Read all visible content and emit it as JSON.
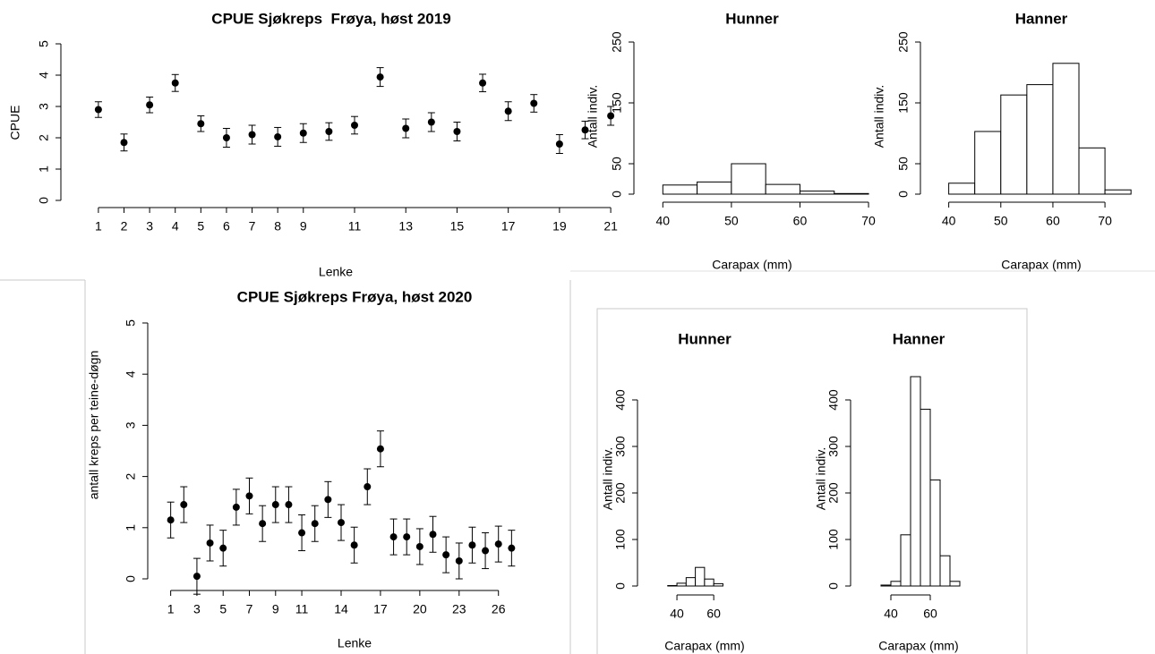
{
  "chart_data": [
    {
      "type": "errorbar",
      "title": "CPUE Sjøkreps  Frøya, høst 2019",
      "xlabel": "Lenke",
      "ylabel": "CPUE",
      "x": [
        1,
        2,
        3,
        4,
        5,
        6,
        7,
        8,
        9,
        10,
        11,
        12,
        13,
        14,
        15,
        16,
        17,
        18,
        19,
        20,
        21
      ],
      "values": [
        2.9,
        1.85,
        3.05,
        3.75,
        2.45,
        2.0,
        2.1,
        2.03,
        2.15,
        2.2,
        2.4,
        3.94,
        2.3,
        2.5,
        2.2,
        3.75,
        2.85,
        3.1,
        1.8,
        2.25,
        2.7
      ],
      "errors": [
        0.25,
        0.27,
        0.25,
        0.27,
        0.25,
        0.3,
        0.3,
        0.3,
        0.3,
        0.28,
        0.28,
        0.3,
        0.3,
        0.3,
        0.3,
        0.28,
        0.3,
        0.28,
        0.3,
        0.28,
        0.3
      ],
      "xlim": [
        0.2,
        21.8
      ],
      "ylim": [
        0,
        5
      ],
      "xticks": [
        1,
        2,
        3,
        4,
        5,
        6,
        7,
        8,
        9,
        11,
        13,
        15,
        17,
        19,
        21
      ],
      "yticks": [
        0,
        1,
        2,
        3,
        4,
        5
      ],
      "color": "#000000"
    },
    {
      "type": "histogram",
      "title": "Hunner",
      "xlabel": "Carapax (mm)",
      "ylabel": "Antall indiv.",
      "bins": [
        40,
        45,
        50,
        55,
        60,
        65,
        70,
        75
      ],
      "values": [
        15,
        20,
        50,
        16,
        5,
        1,
        0
      ],
      "xlim": [
        38,
        76
      ],
      "ylim": [
        0,
        250
      ],
      "xticks": [
        40,
        50,
        60,
        70
      ],
      "yticks": [
        0,
        50,
        150,
        250
      ],
      "color": "#ffffff"
    },
    {
      "type": "histogram",
      "title": "Hanner",
      "xlabel": "Carapax (mm)",
      "ylabel": "Antall indiv.",
      "bins": [
        40,
        45,
        50,
        55,
        60,
        65,
        70,
        75
      ],
      "values": [
        18,
        103,
        163,
        180,
        215,
        76,
        7
      ],
      "xlim": [
        38,
        76
      ],
      "ylim": [
        0,
        250
      ],
      "xticks": [
        40,
        50,
        60,
        70
      ],
      "yticks": [
        0,
        50,
        150,
        250
      ],
      "color": "#ffffff"
    },
    {
      "type": "errorbar",
      "title": "CPUE Sjøkreps Frøya, høst 2020",
      "xlabel": "Lenke",
      "ylabel": "antall kreps per teine-døgn",
      "x": [
        1,
        2,
        3,
        4,
        5,
        6,
        7,
        8,
        9,
        10,
        11,
        12,
        13,
        14,
        15,
        16,
        17,
        18,
        19,
        20,
        21,
        22,
        23,
        24,
        25,
        26,
        27
      ],
      "values": [
        1.15,
        1.45,
        0.05,
        0.7,
        0.6,
        1.4,
        1.62,
        1.08,
        1.45,
        1.45,
        0.9,
        1.08,
        1.55,
        1.1,
        0.66,
        1.8,
        2.54,
        0.82,
        0.82,
        0.63,
        0.87,
        0.47,
        0.35,
        0.66,
        0.55,
        0.68,
        0.6
      ],
      "errors": [
        0.35,
        0.35,
        0.35,
        0.35,
        0.35,
        0.35,
        0.35,
        0.35,
        0.35,
        0.35,
        0.35,
        0.35,
        0.35,
        0.35,
        0.35,
        0.35,
        0.35,
        0.35,
        0.35,
        0.35,
        0.35,
        0.35,
        0.35,
        0.35,
        0.35,
        0.35,
        0.35
      ],
      "xlim": [
        0,
        28
      ],
      "ylim": [
        0,
        5
      ],
      "xticks": [
        1,
        3,
        5,
        7,
        9,
        11,
        14,
        17,
        20,
        23,
        26
      ],
      "yticks": [
        0,
        1,
        2,
        3,
        4,
        5
      ],
      "color": "#000000"
    },
    {
      "type": "histogram",
      "title": "Hunner",
      "xlabel": "Carapax (mm)",
      "ylabel": "Antall indiv.",
      "bins": [
        35,
        40,
        45,
        50,
        55,
        60,
        65
      ],
      "values": [
        1,
        6,
        18,
        40,
        15,
        5
      ],
      "xlim": [
        30,
        75
      ],
      "ylim": [
        0,
        400
      ],
      "xticks": [
        40,
        60
      ],
      "yticks": [
        0,
        100,
        200,
        300,
        400
      ],
      "color": "#ffffff"
    },
    {
      "type": "histogram",
      "title": "Hanner",
      "xlabel": "Carapax (mm)",
      "ylabel": "Antall indiv.",
      "bins": [
        35,
        40,
        45,
        50,
        55,
        60,
        65,
        70,
        75
      ],
      "values": [
        2,
        10,
        110,
        450,
        380,
        228,
        65,
        10
      ],
      "xlim": [
        30,
        75
      ],
      "ylim": [
        0,
        400
      ],
      "xticks": [
        40,
        60
      ],
      "yticks": [
        0,
        100,
        200,
        300,
        400
      ],
      "color": "#ffffff"
    }
  ]
}
